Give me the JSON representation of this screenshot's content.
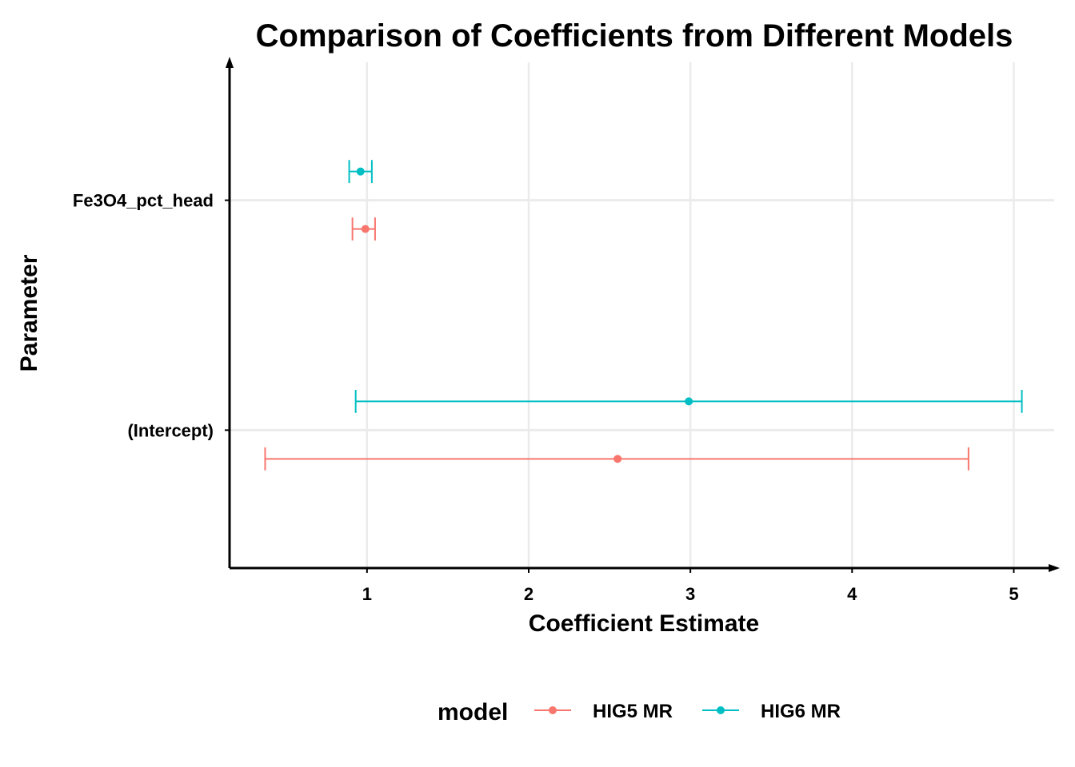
{
  "chart_data": {
    "type": "scatter",
    "variant": "point-range",
    "title": "Comparison of Coefficients from Different Models",
    "xlabel": "Coefficient Estimate",
    "ylabel": "Parameter",
    "categories": [
      "(Intercept)",
      "Fe3O4_pct_head"
    ],
    "xlim": [
      0.15,
      5.25
    ],
    "xticks": [
      1,
      2,
      3,
      4,
      5
    ],
    "grid": true,
    "legend": {
      "title": "model",
      "position": "bottom"
    },
    "series": [
      {
        "name": "HIG5 MR",
        "color": "#F8766D",
        "points": [
          {
            "parameter": "(Intercept)",
            "estimate": 2.55,
            "lower": 0.37,
            "upper": 4.72
          },
          {
            "parameter": "Fe3O4_pct_head",
            "estimate": 0.99,
            "lower": 0.91,
            "upper": 1.05
          }
        ]
      },
      {
        "name": "HIG6 MR",
        "color": "#00BFC4",
        "points": [
          {
            "parameter": "(Intercept)",
            "estimate": 2.99,
            "lower": 0.93,
            "upper": 5.05
          },
          {
            "parameter": "Fe3O4_pct_head",
            "estimate": 0.96,
            "lower": 0.89,
            "upper": 1.03
          }
        ]
      }
    ]
  }
}
